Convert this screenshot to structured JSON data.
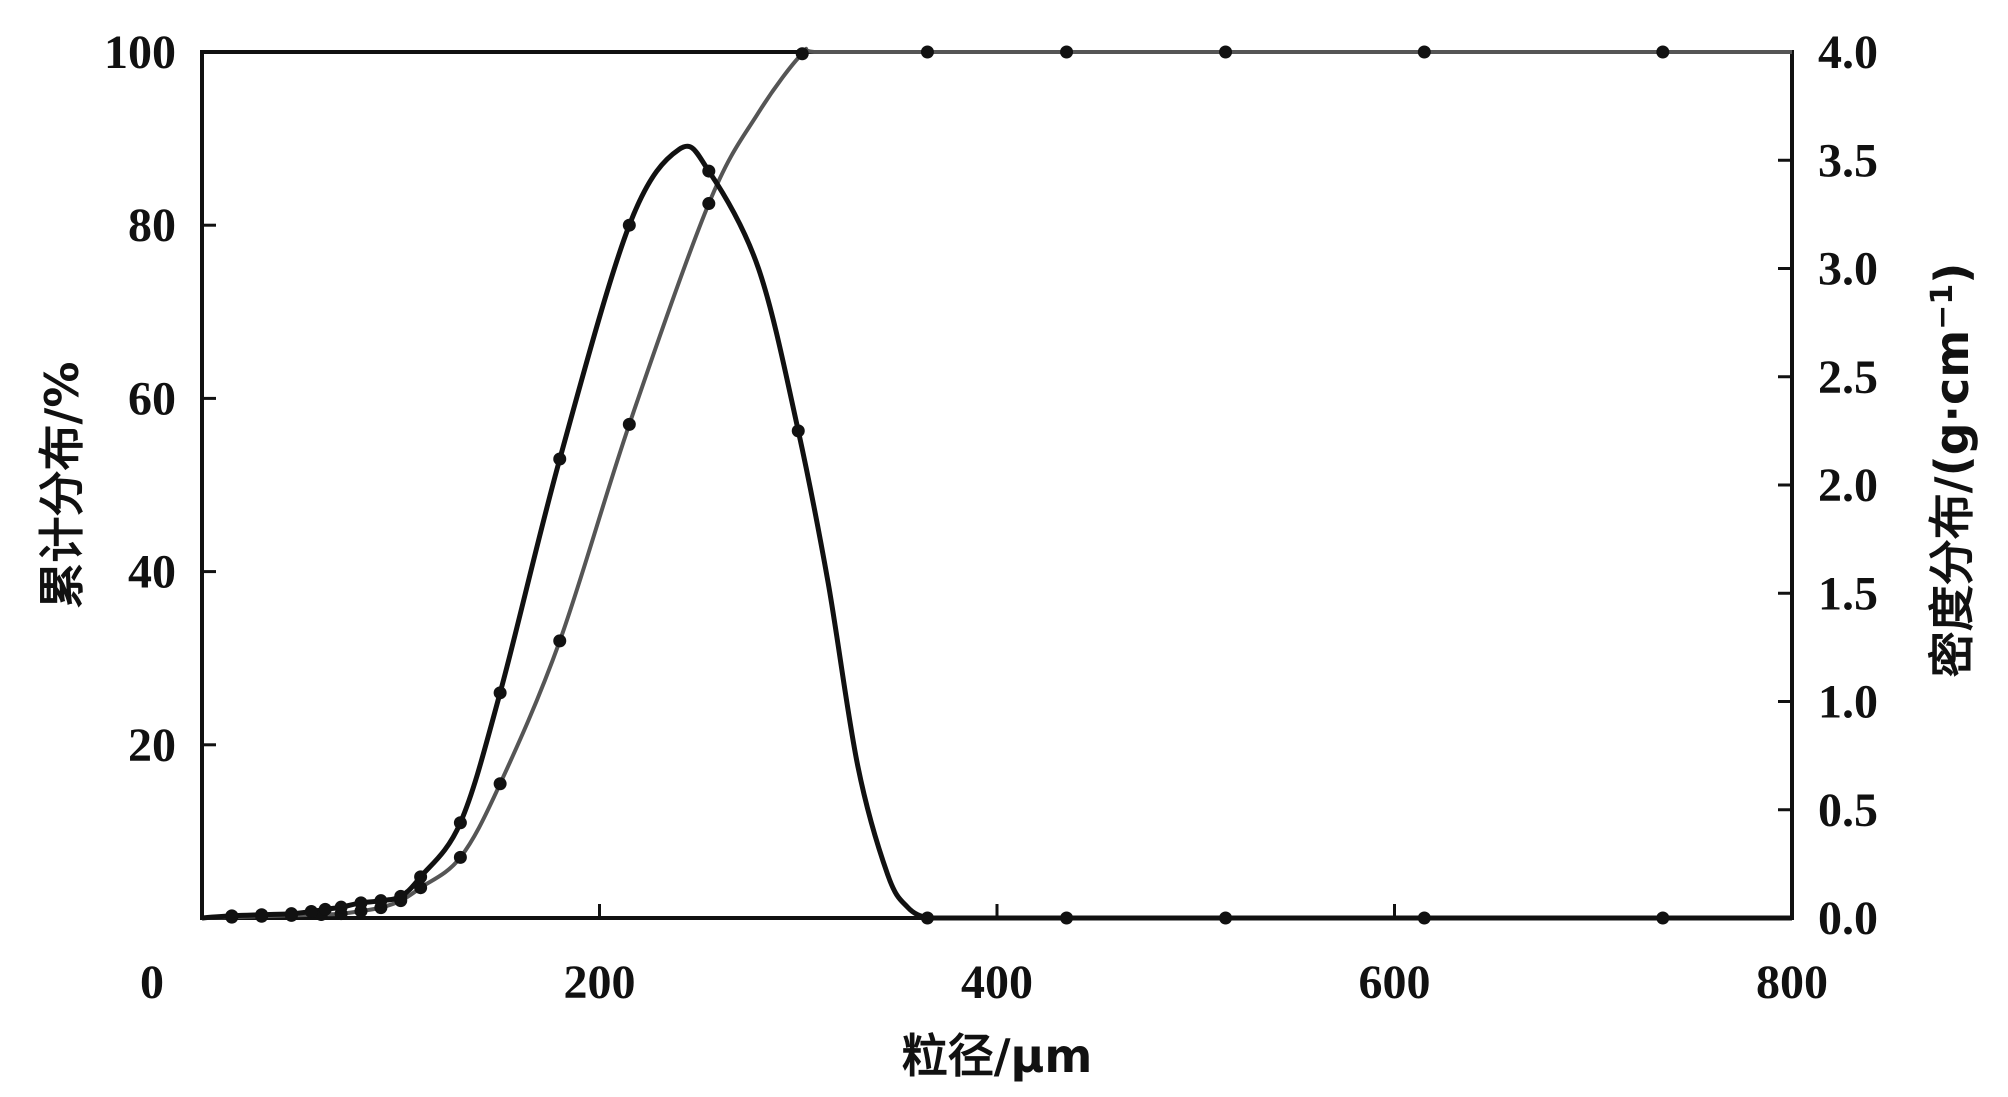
{
  "chart_data": {
    "type": "line",
    "title": "",
    "xlabel": "粒径/μm",
    "ylabel_left": "累计分布/%",
    "ylabel_right_main": "密度分布/(g·cm",
    "ylabel_right_sup": "−1",
    "ylabel_right_close": ")",
    "xlim": [
      0,
      800
    ],
    "ylim_left": [
      0,
      100
    ],
    "ylim_right": [
      0,
      4.0
    ],
    "x_ticks": [
      "0",
      "200",
      "400",
      "600",
      "800"
    ],
    "y_left_ticks": [
      "20",
      "40",
      "60",
      "80",
      "100"
    ],
    "y_right_ticks": [
      "0.0",
      "0.5",
      "1.0",
      "1.5",
      "2.0",
      "2.5",
      "3.0",
      "3.5",
      "4.0"
    ],
    "grid": false,
    "legend": false,
    "series": [
      {
        "axis": "left",
        "color": "#555555",
        "x": [
          0,
          15,
          30,
          45,
          60,
          70,
          80,
          90,
          100,
          110,
          130,
          150,
          180,
          215,
          255,
          280,
          302,
          310,
          365,
          435,
          515,
          615,
          735,
          800
        ],
        "y": [
          0,
          0.1,
          0.2,
          0.3,
          0.4,
          0.5,
          0.8,
          1.2,
          2.0,
          3.5,
          7.0,
          15.5,
          32,
          57,
          82.5,
          93,
          99.8,
          100,
          100,
          100,
          100,
          100,
          100,
          100
        ],
        "markers_x": [
          15,
          30,
          45,
          60,
          70,
          80,
          90,
          100,
          110,
          130,
          150,
          180,
          215,
          255,
          302,
          365,
          435,
          515,
          615,
          735
        ]
      },
      {
        "axis": "right",
        "color": "#111111",
        "x": [
          0,
          15,
          30,
          45,
          55,
          62,
          70,
          80,
          90,
          100,
          110,
          130,
          150,
          180,
          215,
          240,
          255,
          280,
          300,
          315,
          330,
          345,
          355,
          365,
          375,
          400,
          435,
          515,
          615,
          735,
          800
        ],
        "y": [
          0,
          0.01,
          0.015,
          0.02,
          0.03,
          0.04,
          0.05,
          0.07,
          0.08,
          0.1,
          0.19,
          0.44,
          1.04,
          2.12,
          3.2,
          3.55,
          3.45,
          3.0,
          2.25,
          1.55,
          0.7,
          0.2,
          0.05,
          0.0,
          0.0,
          0.0,
          0.0,
          0.0,
          0.0,
          0.0,
          0.0
        ],
        "markers_x": [
          15,
          30,
          45,
          55,
          62,
          70,
          80,
          90,
          100,
          110,
          130,
          150,
          180,
          215,
          255,
          300,
          365,
          435,
          515,
          615,
          735
        ]
      }
    ]
  }
}
